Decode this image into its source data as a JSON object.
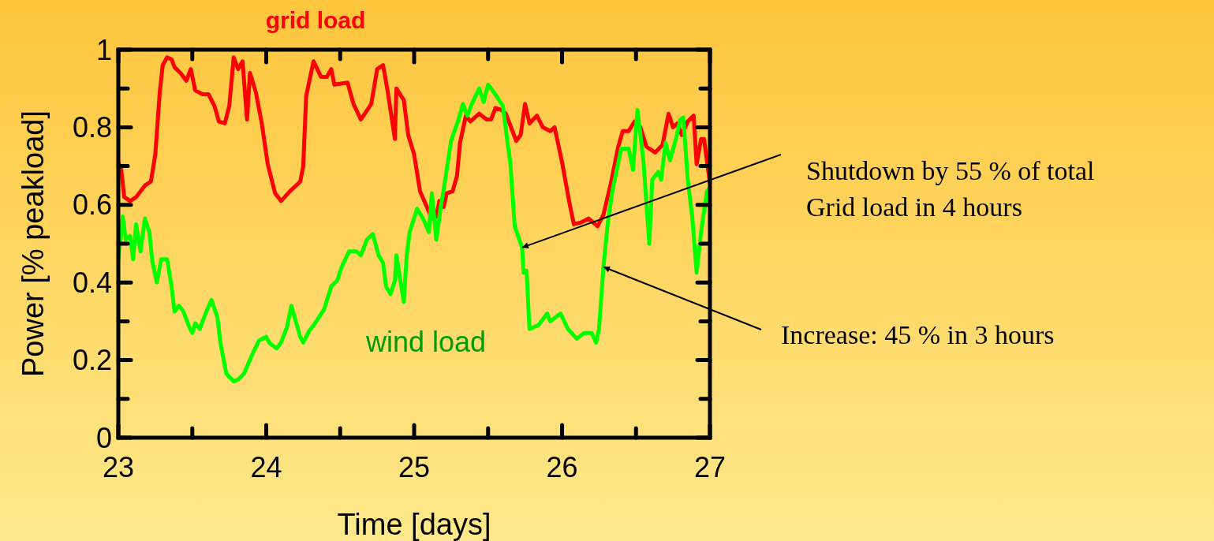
{
  "chart_data": {
    "type": "line",
    "xlabel": "Time [days]",
    "ylabel": "Power [% peakload]",
    "xlim": [
      23,
      27
    ],
    "ylim": [
      0,
      1
    ],
    "xticks": [
      23,
      {
        "value": 23.5,
        "label": null
      },
      24,
      {
        "value": 24.5,
        "label": null
      },
      25,
      {
        "value": 25.5,
        "label": null
      },
      26,
      {
        "value": 26.5,
        "label": null
      },
      27
    ],
    "yticks": [
      0,
      {
        "value": 0.1,
        "label": null
      },
      0.2,
      {
        "value": 0.3,
        "label": null
      },
      0.4,
      {
        "value": 0.5,
        "label": null
      },
      0.6,
      {
        "value": 0.7,
        "label": null
      },
      0.8,
      {
        "value": 0.9,
        "label": null
      },
      1
    ],
    "grid": false,
    "legend": false,
    "marker": "none",
    "line_style": "solid",
    "series": [
      {
        "name": "grid load",
        "color": "#ff0000",
        "x": [
          23,
          23.02,
          23.04,
          23.08,
          23.12,
          23.18,
          23.22,
          23.25,
          23.28,
          23.3,
          23.33,
          23.36,
          23.38,
          23.42,
          23.46,
          23.49,
          23.52,
          23.57,
          23.61,
          23.65,
          23.68,
          23.72,
          23.75,
          23.78,
          23.81,
          23.84,
          23.87,
          23.89,
          23.93,
          23.97,
          24.01,
          24.06,
          24.1,
          24.16,
          24.23,
          24.25,
          24.27,
          24.3,
          24.32,
          24.37,
          24.41,
          24.44,
          24.46,
          24.55,
          24.59,
          24.64,
          24.71,
          24.75,
          24.79,
          24.82,
          24.87,
          24.88,
          24.93,
          24.96,
          25,
          25.04,
          25.08,
          25.12,
          25.15,
          25.17,
          25.2,
          25.22,
          25.26,
          25.29,
          25.31,
          25.35,
          25.38,
          25.44,
          25.49,
          25.52,
          25.55,
          25.59,
          25.62,
          25.66,
          25.69,
          25.72,
          25.75,
          25.78,
          25.83,
          25.87,
          25.92,
          25.95,
          26,
          26.05,
          26.08,
          26.13,
          26.18,
          26.24,
          26.28,
          26.33,
          26.38,
          26.41,
          26.45,
          26.49,
          26.53,
          26.57,
          26.63,
          26.68,
          26.72,
          26.75,
          26.78,
          26.81,
          26.85,
          26.89,
          26.91,
          26.94,
          26.96,
          27
        ],
        "values": [
          0.71,
          0.69,
          0.62,
          0.61,
          0.62,
          0.65,
          0.66,
          0.73,
          0.89,
          0.96,
          0.98,
          0.975,
          0.955,
          0.94,
          0.92,
          0.95,
          0.895,
          0.885,
          0.885,
          0.855,
          0.815,
          0.81,
          0.855,
          0.98,
          0.95,
          0.97,
          0.82,
          0.94,
          0.89,
          0.81,
          0.705,
          0.63,
          0.61,
          0.635,
          0.66,
          0.7,
          0.88,
          0.935,
          0.97,
          0.93,
          0.93,
          0.95,
          0.91,
          0.915,
          0.86,
          0.82,
          0.86,
          0.95,
          0.96,
          0.895,
          0.77,
          0.9,
          0.87,
          0.78,
          0.73,
          0.635,
          0.6,
          0.565,
          0.57,
          0.61,
          0.595,
          0.63,
          0.635,
          0.675,
          0.76,
          0.83,
          0.815,
          0.835,
          0.82,
          0.82,
          0.85,
          0.845,
          0.835,
          0.795,
          0.765,
          0.78,
          0.86,
          0.81,
          0.83,
          0.8,
          0.79,
          0.8,
          0.71,
          0.605,
          0.55,
          0.555,
          0.565,
          0.545,
          0.575,
          0.655,
          0.75,
          0.79,
          0.79,
          0.815,
          0.8,
          0.75,
          0.735,
          0.755,
          0.835,
          0.8,
          0.81,
          0.78,
          0.815,
          0.83,
          0.705,
          0.77,
          0.77,
          0.655
        ]
      },
      {
        "name": "wind load",
        "color": "#00ff00",
        "x": [
          23,
          23.03,
          23.05,
          23.08,
          23.1,
          23.12,
          23.15,
          23.18,
          23.21,
          23.23,
          23.26,
          23.29,
          23.33,
          23.36,
          23.38,
          23.41,
          23.44,
          23.48,
          23.5,
          23.52,
          23.55,
          23.59,
          23.63,
          23.67,
          23.69,
          23.73,
          23.78,
          23.81,
          23.85,
          23.9,
          23.95,
          24,
          24.02,
          24.07,
          24.1,
          24.14,
          24.17,
          24.23,
          24.25,
          24.29,
          24.33,
          24.39,
          24.44,
          24.48,
          24.51,
          24.56,
          24.61,
          24.64,
          24.68,
          24.72,
          24.76,
          24.79,
          24.81,
          24.84,
          24.87,
          24.88,
          24.93,
          24.95,
          24.97,
          25.02,
          25.06,
          25.1,
          25.12,
          25.15,
          25.18,
          25.2,
          25.25,
          25.3,
          25.33,
          25.36,
          25.39,
          25.44,
          25.47,
          25.5,
          25.54,
          25.6,
          25.63,
          25.65,
          25.68,
          25.73,
          25.74,
          25.76,
          25.78,
          25.84,
          25.9,
          25.92,
          25.99,
          26.04,
          26.1,
          26.15,
          26.2,
          26.23,
          26.25,
          26.28,
          26.31,
          26.34,
          26.4,
          26.45,
          26.48,
          26.51,
          26.55,
          26.59,
          26.61,
          26.65,
          26.67,
          26.7,
          26.73,
          26.77,
          26.8,
          26.82,
          26.85,
          26.88,
          26.91,
          26.94,
          26.98,
          27
        ],
        "values": [
          0.46,
          0.57,
          0.51,
          0.52,
          0.46,
          0.55,
          0.48,
          0.565,
          0.53,
          0.455,
          0.4,
          0.46,
          0.46,
          0.39,
          0.325,
          0.34,
          0.325,
          0.285,
          0.27,
          0.295,
          0.28,
          0.32,
          0.355,
          0.31,
          0.245,
          0.165,
          0.145,
          0.15,
          0.165,
          0.21,
          0.25,
          0.26,
          0.245,
          0.23,
          0.245,
          0.285,
          0.34,
          0.26,
          0.245,
          0.275,
          0.295,
          0.33,
          0.39,
          0.405,
          0.44,
          0.48,
          0.48,
          0.47,
          0.51,
          0.525,
          0.47,
          0.45,
          0.39,
          0.37,
          0.405,
          0.47,
          0.35,
          0.47,
          0.53,
          0.59,
          0.565,
          0.53,
          0.63,
          0.51,
          0.595,
          0.64,
          0.765,
          0.82,
          0.86,
          0.83,
          0.86,
          0.9,
          0.865,
          0.91,
          0.89,
          0.855,
          0.765,
          0.71,
          0.545,
          0.49,
          0.425,
          0.43,
          0.28,
          0.29,
          0.32,
          0.3,
          0.32,
          0.28,
          0.255,
          0.27,
          0.27,
          0.245,
          0.28,
          0.44,
          0.555,
          0.635,
          0.745,
          0.745,
          0.69,
          0.845,
          0.715,
          0.5,
          0.665,
          0.685,
          0.665,
          0.76,
          0.715,
          0.77,
          0.82,
          0.825,
          0.665,
          0.57,
          0.425,
          0.53,
          0.635,
          0.645
        ]
      }
    ],
    "annotations": [
      {
        "text": "Shutdown by 55 % of total Grid load in 4 hours",
        "x": 25.73,
        "y": 0.49
      },
      {
        "text": "Increase: 45 % in 3 hours",
        "x": 26.28,
        "y": 0.44
      }
    ]
  }
}
